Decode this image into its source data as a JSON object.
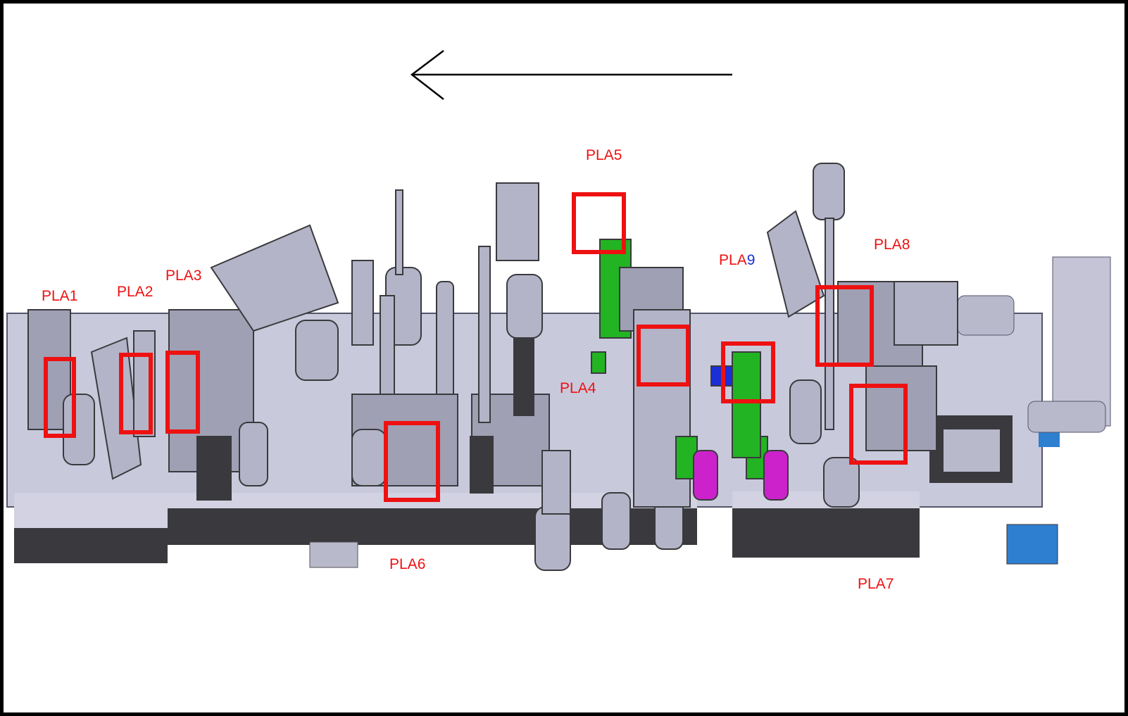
{
  "labels": {
    "pla1": "PLA1",
    "pla2": "PLA2",
    "pla3": "PLA3",
    "pla4": "PLA4",
    "pla5": "PLA5",
    "pla6": "PLA6",
    "pla7": "PLA7",
    "pla8": "PLA8",
    "pla9_prefix": "PLA",
    "pla9_number": "9"
  },
  "arrow": {
    "direction": "left"
  },
  "colors": {
    "highlight_box": "#ee1111",
    "label_text": "#ee1111",
    "pla9_number": "#1a2fd6",
    "machine_base": "#c9c9dc",
    "machine_dark": "#3a3a3e",
    "green_part": "#22b422",
    "magenta_part": "#cc22cc",
    "blue_part": "#2f7fd0"
  }
}
